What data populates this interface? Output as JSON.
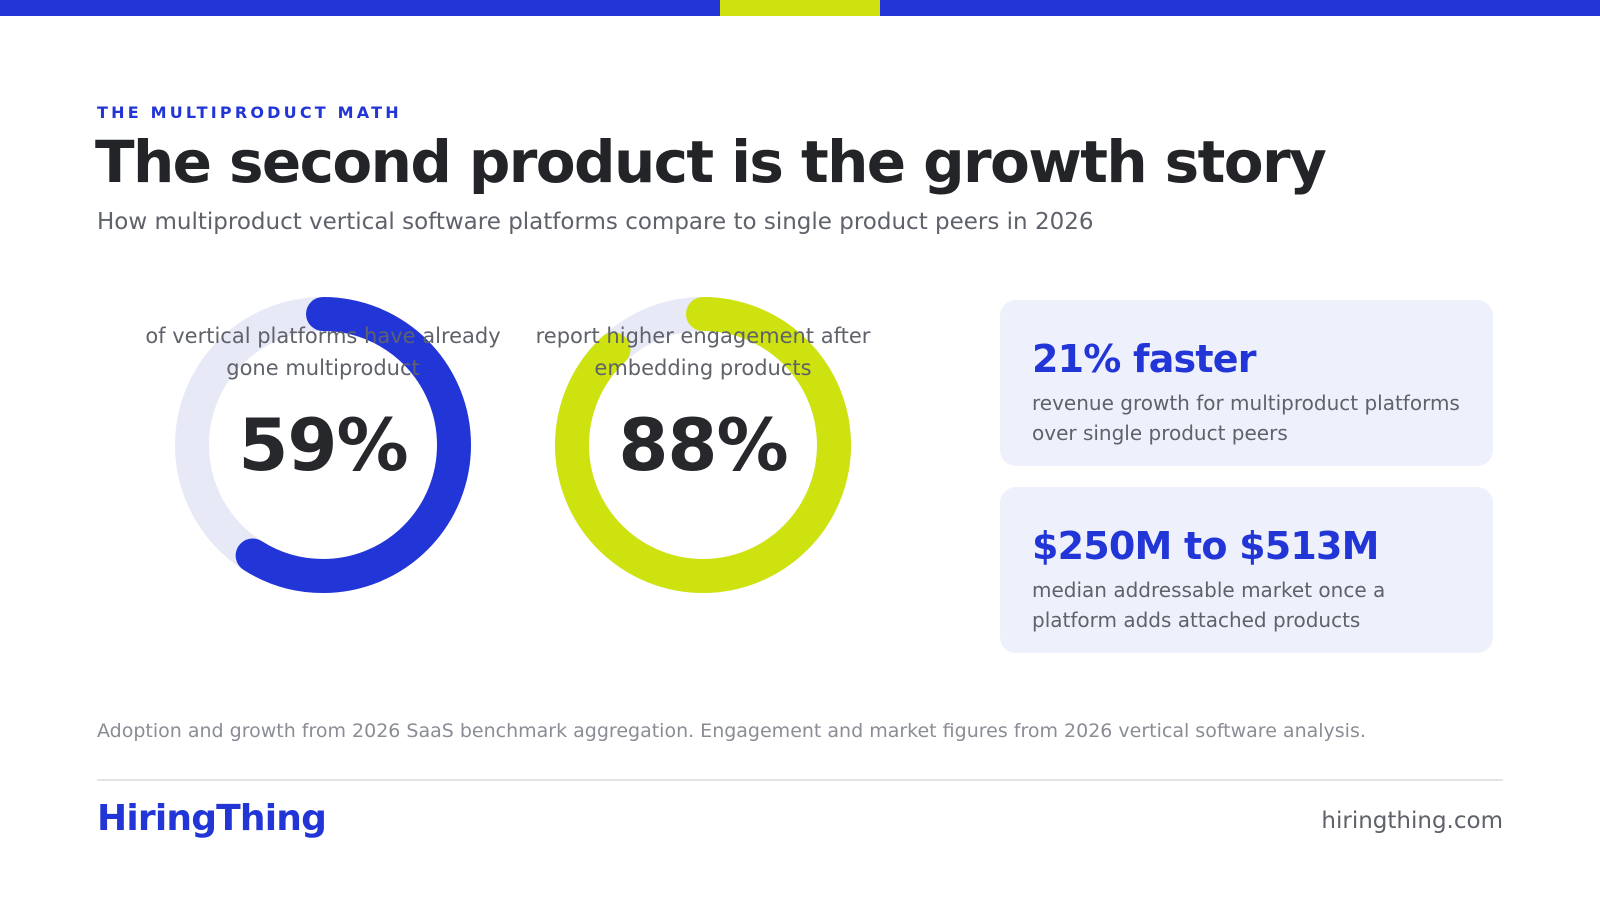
{
  "colors": {
    "brand_blue": "#2235d6",
    "lime": "#cde20e",
    "track": "#e7e9f7",
    "card_bg": "#eef0fb"
  },
  "eyebrow": "THE MULTIPRODUCT MATH",
  "title": "The second product is the growth story",
  "subtitle": "How multiproduct vertical software platforms compare to single product peers in 2026",
  "chart_data": [
    {
      "type": "pie",
      "style": "donut",
      "value_percent": 59,
      "label": "59%",
      "caption": "of vertical platforms have already gone multiproduct",
      "color": "#2235d6"
    },
    {
      "type": "pie",
      "style": "donut",
      "value_percent": 88,
      "label": "88%",
      "caption": "report higher engagement after embedding products",
      "color": "#cde20e"
    }
  ],
  "stats": [
    {
      "headline": "21% faster",
      "description": "revenue growth for multiproduct platforms over single product peers"
    },
    {
      "headline": "$250M to $513M",
      "description": "median addressable market once a platform adds attached products"
    }
  ],
  "footnote": "Adoption and growth from 2026 SaaS benchmark aggregation. Engagement and market figures from 2026 vertical software analysis.",
  "footer": {
    "brand": "HiringThing",
    "site": "hiringthing.com"
  }
}
